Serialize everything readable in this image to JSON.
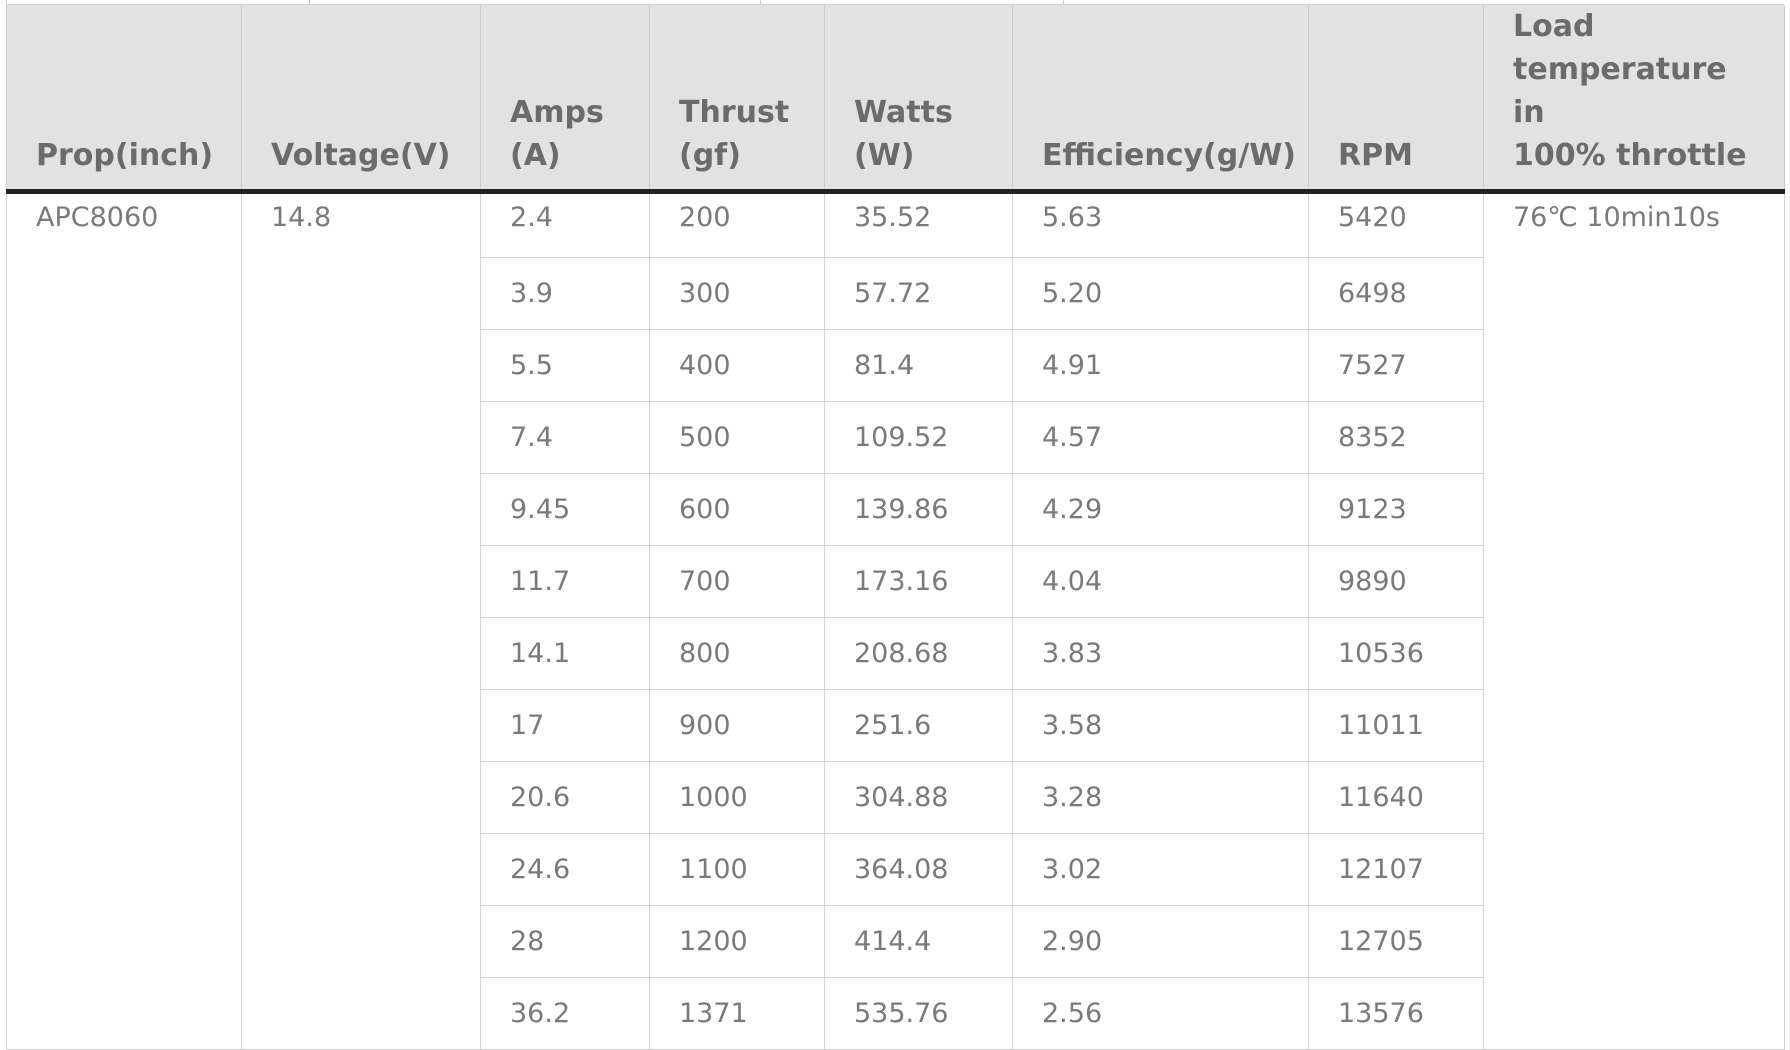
{
  "table": {
    "headers": [
      "Prop(inch)",
      "Voltage(V)",
      "Amps\n(A)",
      "Thrust\n(gf)",
      "Watts\n(W)",
      "Efficiency(g/W)",
      "RPM",
      "Load\ntemperature in\n100% throttle"
    ],
    "prop": "APC8060",
    "voltage": "14.8",
    "temperature": "76℃ 10min10s",
    "rows": [
      {
        "amps": "2.4",
        "thrust": "200",
        "watts": "35.52",
        "efficiency": "5.63",
        "rpm": "5420"
      },
      {
        "amps": "3.9",
        "thrust": "300",
        "watts": "57.72",
        "efficiency": "5.20",
        "rpm": "6498"
      },
      {
        "amps": "5.5",
        "thrust": "400",
        "watts": "81.4",
        "efficiency": "4.91",
        "rpm": "7527"
      },
      {
        "amps": "7.4",
        "thrust": "500",
        "watts": "109.52",
        "efficiency": "4.57",
        "rpm": "8352"
      },
      {
        "amps": "9.45",
        "thrust": "600",
        "watts": "139.86",
        "efficiency": "4.29",
        "rpm": "9123"
      },
      {
        "amps": "11.7",
        "thrust": "700",
        "watts": "173.16",
        "efficiency": "4.04",
        "rpm": "9890"
      },
      {
        "amps": "14.1",
        "thrust": "800",
        "watts": "208.68",
        "efficiency": "3.83",
        "rpm": "10536"
      },
      {
        "amps": "17",
        "thrust": "900",
        "watts": "251.6",
        "efficiency": "3.58",
        "rpm": "11011"
      },
      {
        "amps": "20.6",
        "thrust": "1000",
        "watts": "304.88",
        "efficiency": "3.28",
        "rpm": "11640"
      },
      {
        "amps": "24.6",
        "thrust": "1100",
        "watts": "364.08",
        "efficiency": "3.02",
        "rpm": "12107"
      },
      {
        "amps": "28",
        "thrust": "1200",
        "watts": "414.4",
        "efficiency": "2.90",
        "rpm": "12705"
      },
      {
        "amps": "36.2",
        "thrust": "1371",
        "watts": "535.76",
        "efficiency": "2.56",
        "rpm": "13576"
      }
    ]
  }
}
